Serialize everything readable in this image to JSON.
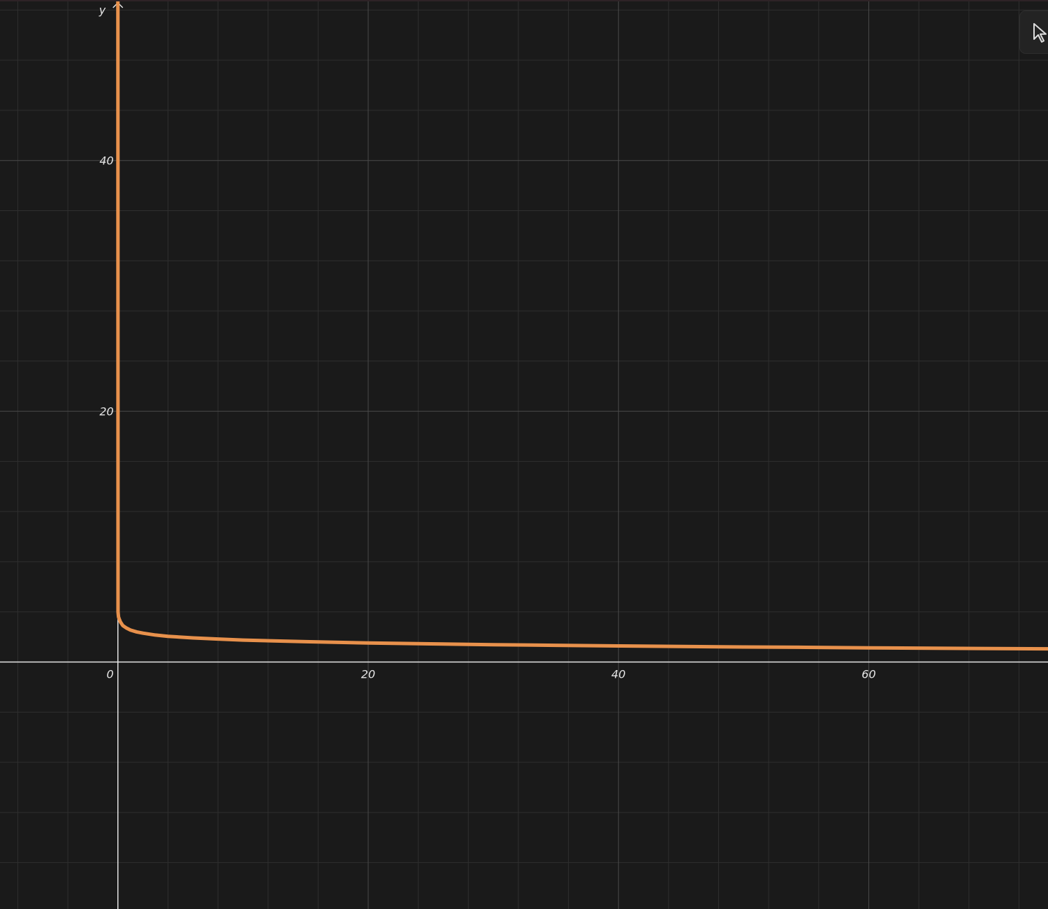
{
  "graph": {
    "type": "line",
    "y_axis_label": "y",
    "x_ticks": [
      {
        "value": 0,
        "label": "0"
      },
      {
        "value": 20,
        "label": "20"
      },
      {
        "value": 40,
        "label": "40"
      },
      {
        "value": 60,
        "label": "60"
      }
    ],
    "y_ticks": [
      {
        "value": 20,
        "label": "20"
      },
      {
        "value": 40,
        "label": "40"
      }
    ],
    "x_range": [
      -9.42,
      74.32
    ],
    "y_range": [
      -19.7,
      52.8
    ],
    "grid": true,
    "minor_step": 4,
    "major_step": 20,
    "curve_color": "#e8914c",
    "curve": {
      "x": [
        0.0,
        0.01,
        0.05,
        0.1,
        0.2,
        0.4,
        0.7,
        1.0,
        1.5,
        2,
        3,
        4,
        6,
        8,
        10,
        15,
        20,
        25,
        30,
        35,
        40,
        45,
        50,
        55,
        60,
        65,
        70,
        74.3
      ],
      "y": [
        52.8,
        4.0,
        3.6,
        3.45,
        3.2,
        2.9,
        2.7,
        2.55,
        2.4,
        2.3,
        2.15,
        2.05,
        1.92,
        1.83,
        1.75,
        1.62,
        1.52,
        1.45,
        1.38,
        1.33,
        1.28,
        1.24,
        1.2,
        1.17,
        1.13,
        1.1,
        1.07,
        1.05
      ]
    }
  },
  "toolbar": {
    "tool_icon": "cursor-arrow-icon"
  }
}
